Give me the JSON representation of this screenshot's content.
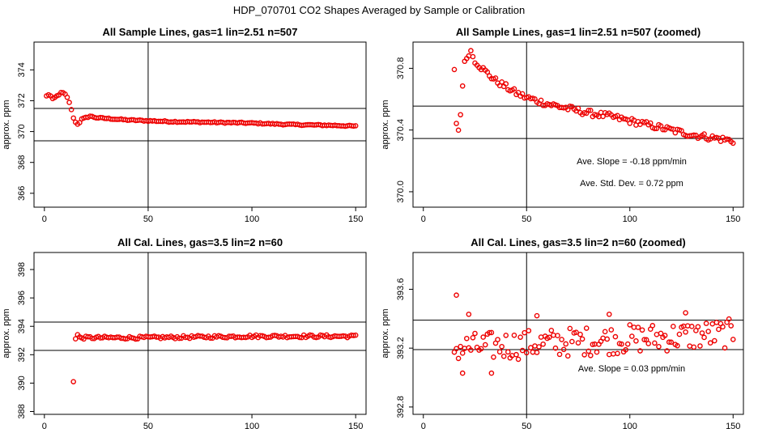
{
  "page": {
    "title": "HDP_070701  CO2 Shapes Averaged by Sample or Calibration"
  },
  "colors": {
    "points": "#ee0000",
    "axis": "#000000",
    "background": "#ffffff"
  },
  "chart_data": [
    {
      "type": "scatter",
      "title": "All Sample Lines, gas=1 lin=2.51 n=507",
      "xlabel": "",
      "ylabel": "approx. ppm",
      "xlim": [
        -5,
        155
      ],
      "ylim": [
        365.1,
        375.8
      ],
      "xticks": [
        0,
        50,
        100,
        150
      ],
      "yticks": [
        366,
        368,
        370,
        372,
        374
      ],
      "vline": 50,
      "hlines": [
        369.4,
        371.5
      ],
      "annotations": [],
      "x_range": [
        1,
        150
      ],
      "anchors": [
        [
          1,
          372.3
        ],
        [
          2,
          372.4
        ],
        [
          3,
          372.3
        ],
        [
          4,
          372.1
        ],
        [
          5,
          372.2
        ],
        [
          6,
          372.3
        ],
        [
          7,
          372.4
        ],
        [
          8,
          372.5
        ],
        [
          9,
          372.5
        ],
        [
          10,
          372.4
        ],
        [
          11,
          372.2
        ],
        [
          12,
          371.9
        ],
        [
          13,
          371.4
        ],
        [
          14,
          370.9
        ],
        [
          15,
          370.6
        ],
        [
          16,
          370.5
        ],
        [
          17,
          370.6
        ],
        [
          18,
          370.8
        ],
        [
          20,
          370.9
        ],
        [
          22,
          371.0
        ],
        [
          25,
          370.9
        ],
        [
          30,
          370.85
        ],
        [
          40,
          370.75
        ],
        [
          60,
          370.65
        ],
        [
          80,
          370.6
        ],
        [
          100,
          370.55
        ],
        [
          120,
          370.45
        ],
        [
          140,
          370.4
        ],
        [
          150,
          370.35
        ]
      ],
      "noise": 0.04
    },
    {
      "type": "scatter",
      "title": "All Sample Lines, gas=1 lin=2.51 n=507 (zoomed)",
      "xlabel": "",
      "ylabel": "approx. ppm",
      "xlim": [
        -5,
        155
      ],
      "ylim": [
        369.9,
        370.97
      ],
      "xticks": [
        0,
        50,
        100,
        150
      ],
      "yticks": [
        370.0,
        370.4,
        370.8
      ],
      "vline": 50,
      "hlines": [
        370.345,
        370.555
      ],
      "annotations": [
        "Ave. Slope =  -0.18  ppm/min",
        "Ave. Std. Dev. =  0.72  ppm"
      ],
      "x_range": [
        15,
        150
      ],
      "anchors": [
        [
          15,
          370.78
        ],
        [
          16,
          370.45
        ],
        [
          17,
          370.4
        ],
        [
          18,
          370.5
        ],
        [
          19,
          370.7
        ],
        [
          20,
          370.83
        ],
        [
          21,
          370.87
        ],
        [
          22,
          370.9
        ],
        [
          23,
          370.91
        ],
        [
          24,
          370.88
        ],
        [
          25,
          370.85
        ],
        [
          27,
          370.82
        ],
        [
          30,
          370.78
        ],
        [
          35,
          370.72
        ],
        [
          40,
          370.68
        ],
        [
          45,
          370.64
        ],
        [
          50,
          370.61
        ],
        [
          60,
          370.57
        ],
        [
          70,
          370.54
        ],
        [
          80,
          370.51
        ],
        [
          90,
          370.49
        ],
        [
          100,
          370.46
        ],
        [
          110,
          370.43
        ],
        [
          120,
          370.4
        ],
        [
          130,
          370.37
        ],
        [
          140,
          370.35
        ],
        [
          150,
          370.33
        ]
      ],
      "noise": 0.02
    },
    {
      "type": "scatter",
      "title": "All Cal. Lines, gas=3.5 lin=2 n=60",
      "xlabel": "",
      "ylabel": "approx. ppm",
      "xlim": [
        -5,
        155
      ],
      "ylim": [
        387.8,
        399.2
      ],
      "xticks": [
        0,
        50,
        100,
        150
      ],
      "yticks": [
        388,
        390,
        392,
        394,
        396,
        398
      ],
      "vline": 50,
      "hlines": [
        392.3,
        394.3
      ],
      "annotations": [],
      "x_range": [
        15,
        150
      ],
      "anchors": [
        [
          15,
          393.1
        ],
        [
          16,
          393.4
        ],
        [
          17,
          393.2
        ],
        [
          20,
          393.2
        ],
        [
          50,
          393.2
        ],
        [
          100,
          393.3
        ],
        [
          150,
          393.3
        ]
      ],
      "noise": 0.1,
      "extra_points": [
        [
          14,
          390.1
        ]
      ]
    },
    {
      "type": "scatter",
      "title": "All Cal. Lines, gas=3.5 lin=2 n=60 (zoomed)",
      "xlabel": "",
      "ylabel": "approx. ppm",
      "xlim": [
        -5,
        155
      ],
      "ylim": [
        392.75,
        393.85
      ],
      "xticks": [
        0,
        50,
        100,
        150
      ],
      "yticks": [
        392.8,
        393.2,
        393.6
      ],
      "vline": 50,
      "hlines": [
        393.19,
        393.39
      ],
      "annotations": [
        "Ave. Slope =  0.03  ppm/min"
      ],
      "x_range": [
        15,
        150
      ],
      "anchors": [
        [
          15,
          393.2
        ],
        [
          150,
          393.3
        ]
      ],
      "noise": 0.1,
      "extra_points": [
        [
          16,
          393.56
        ],
        [
          19,
          393.03
        ],
        [
          22,
          393.43
        ],
        [
          33,
          393.03
        ],
        [
          55,
          393.42
        ],
        [
          90,
          393.43
        ],
        [
          127,
          393.44
        ]
      ]
    }
  ]
}
